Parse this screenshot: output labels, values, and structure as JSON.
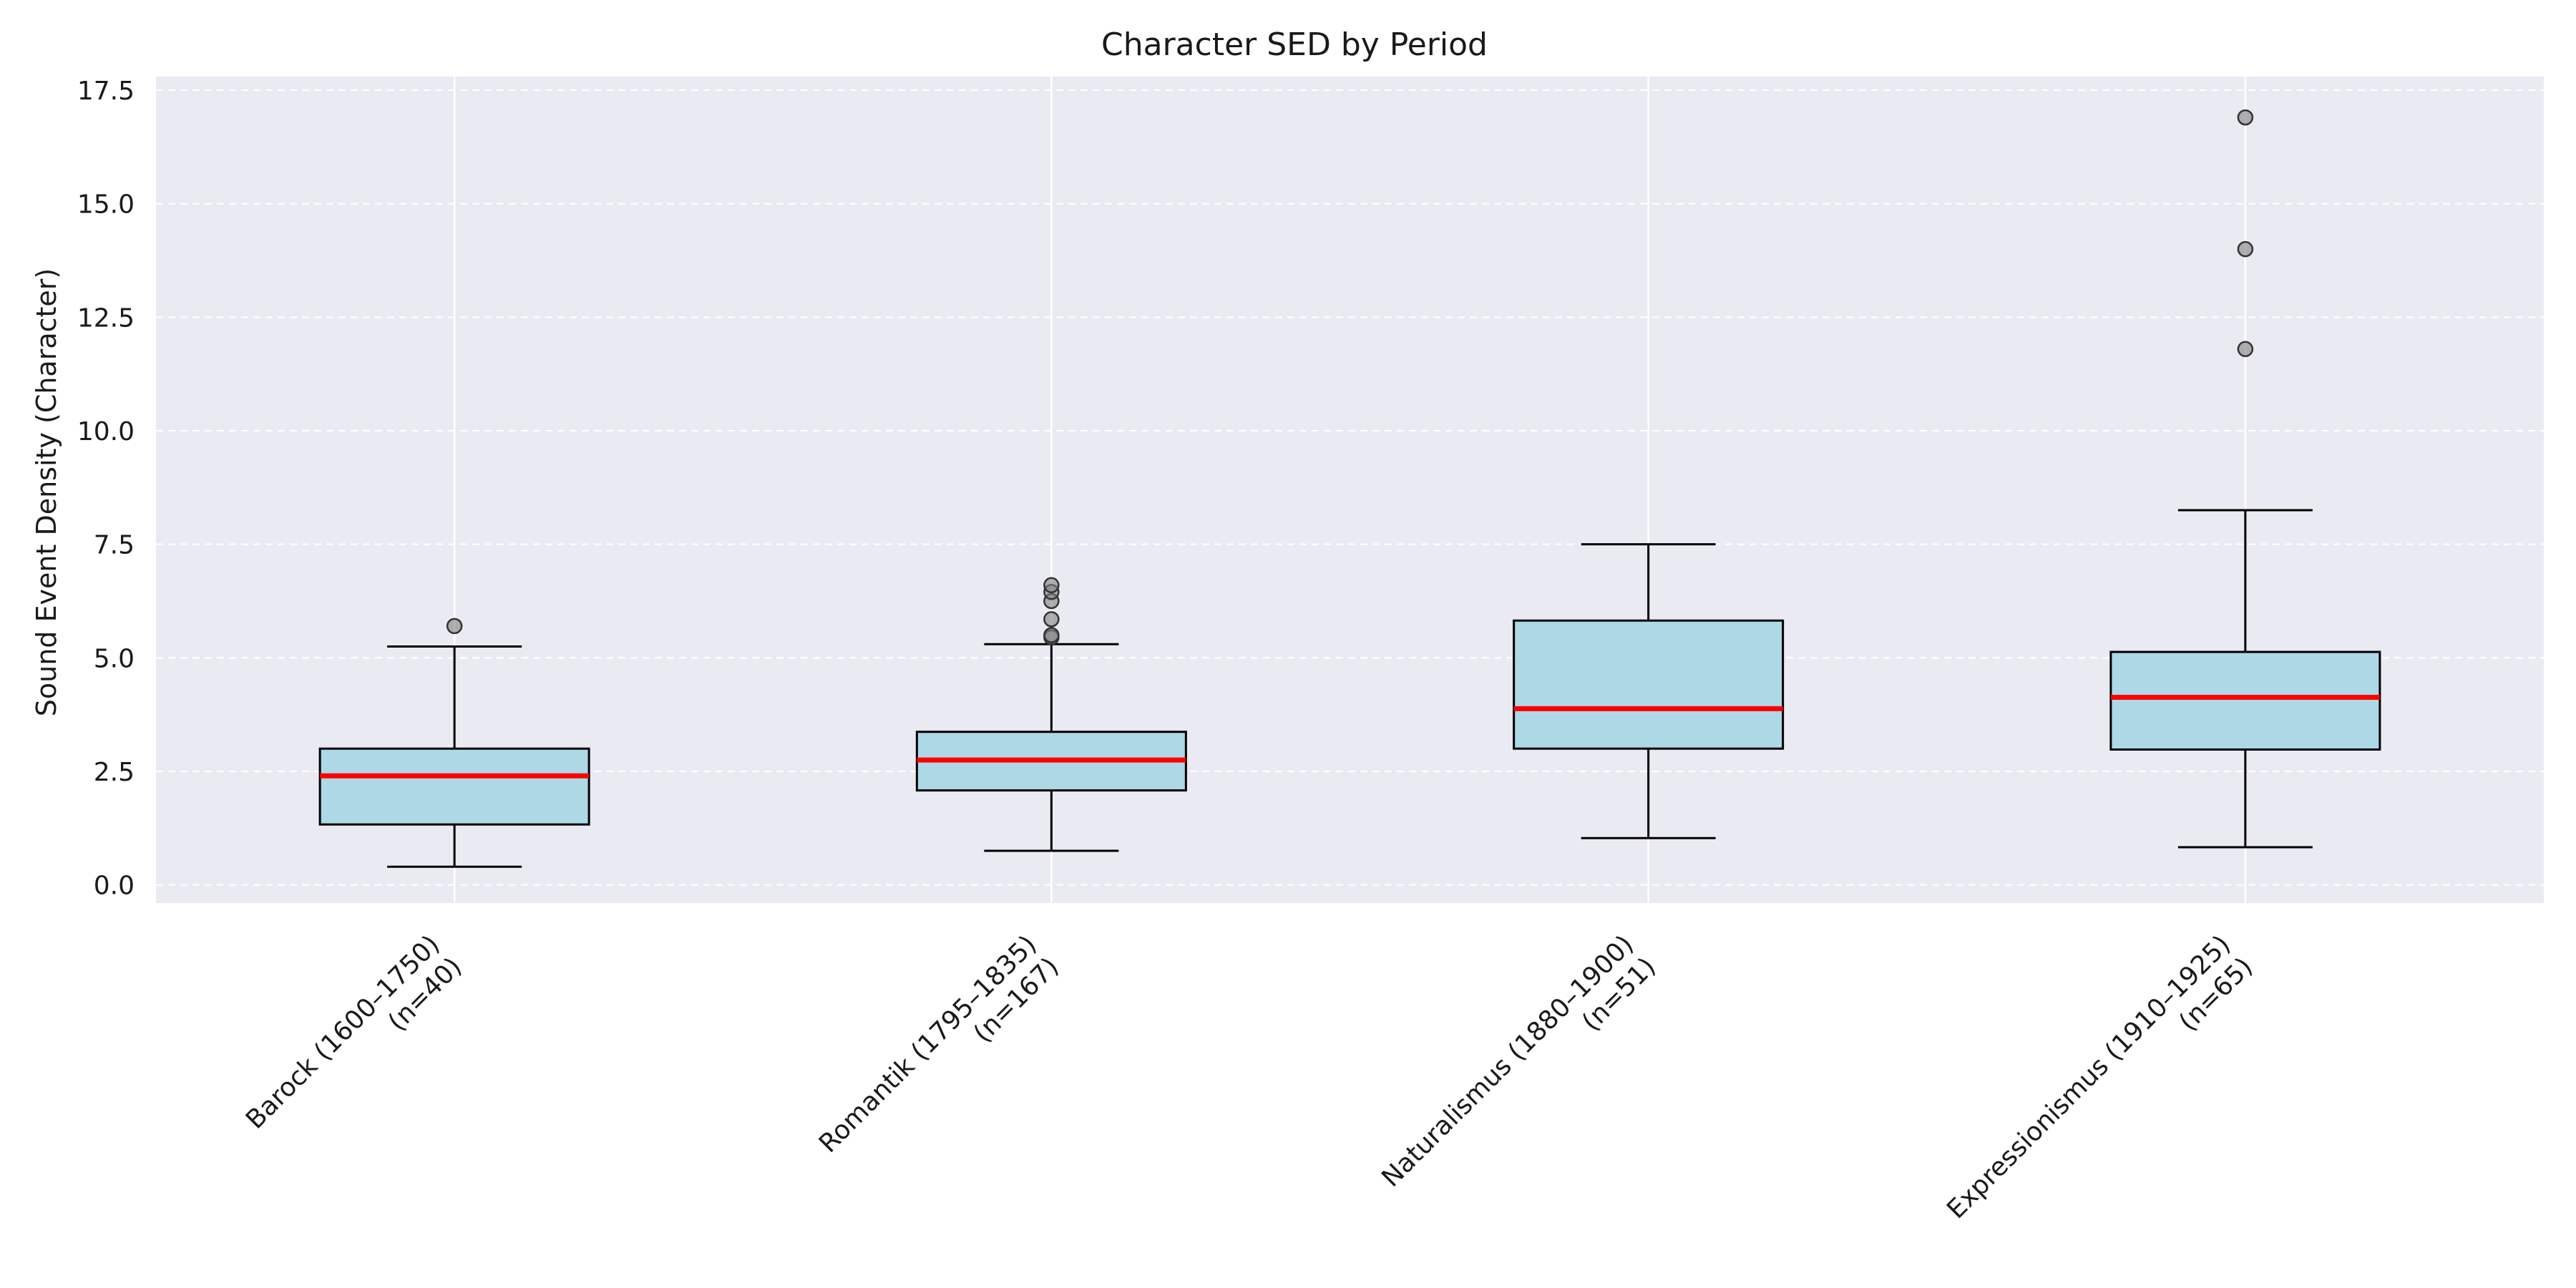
{
  "chart_data": {
    "type": "box",
    "title": "Character SED by Period",
    "xlabel": "",
    "ylabel": "Sound Event Density (Character)",
    "ylim": [
      -0.4,
      17.8
    ],
    "yticks": [
      "0.0",
      "2.5",
      "5.0",
      "7.5",
      "10.0",
      "12.5",
      "15.0",
      "17.5"
    ],
    "grid": true,
    "colors": {
      "plot_background": "#eaeaf2",
      "box_fill": "#add8e6",
      "box_edge": "#000000",
      "median": "#ff0000",
      "outlier": "#808080",
      "gridline": "#ffffff"
    },
    "categories": [
      {
        "label_line1": "Barock (1600–1750)",
        "label_line2": "(n=40)"
      },
      {
        "label_line1": "Romantik (1795–1835)",
        "label_line2": "(n=167)"
      },
      {
        "label_line1": "Naturalismus (1880–1900)",
        "label_line2": "(n=51)"
      },
      {
        "label_line1": "Expressionismus (1910–1925)",
        "label_line2": "(n=65)"
      }
    ],
    "boxes": [
      {
        "whisker_low": 0.4,
        "q1": 1.33,
        "median": 2.4,
        "q3": 3.0,
        "whisker_high": 5.25,
        "outliers": [
          5.7
        ]
      },
      {
        "whisker_low": 0.75,
        "q1": 2.08,
        "median": 2.75,
        "q3": 3.37,
        "whisker_high": 5.3,
        "outliers": [
          5.45,
          5.5,
          5.85,
          6.25,
          6.45,
          6.6
        ]
      },
      {
        "whisker_low": 1.03,
        "q1": 3.0,
        "median": 3.88,
        "q3": 5.82,
        "whisker_high": 7.5,
        "outliers": []
      },
      {
        "whisker_low": 0.83,
        "q1": 2.98,
        "median": 4.13,
        "q3": 5.13,
        "whisker_high": 8.25,
        "outliers": [
          11.8,
          14.0,
          16.9
        ]
      }
    ]
  }
}
